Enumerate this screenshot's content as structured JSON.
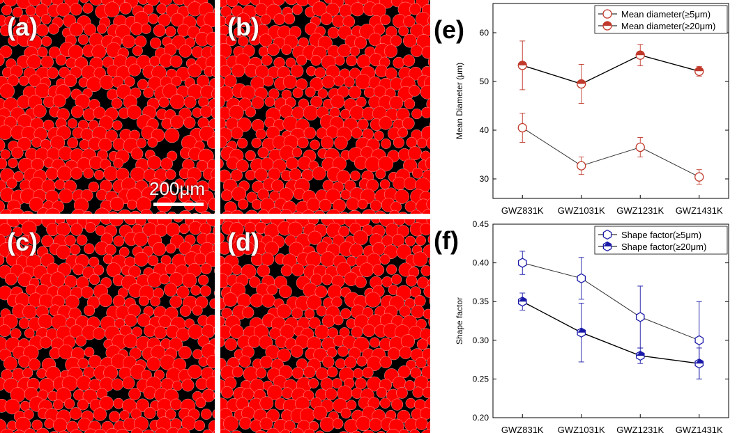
{
  "micrographs": [
    {
      "label": "(a)",
      "seed": 11
    },
    {
      "label": "(b)",
      "seed": 23
    },
    {
      "label": "(c)",
      "seed": 37
    },
    {
      "label": "(d)",
      "seed": 51
    }
  ],
  "scale_bar": {
    "text": "200μm"
  },
  "colors": {
    "grain": "#ff0000",
    "matrix": "#000000",
    "series_e": "#c0392b",
    "series_f": "#1a1aa8"
  },
  "panel_labels": {
    "e": "(e)",
    "f": "(f)"
  },
  "chart_data": [
    {
      "type": "line",
      "categories": [
        "GWZ831K",
        "GWZ1031K",
        "GWZ1231K",
        "GWZ1431K"
      ],
      "ylabel": "Mean Diameter (μm)",
      "xlabel": "",
      "ylim": [
        26,
        66
      ],
      "yticks": [
        30,
        40,
        50,
        60
      ],
      "legend_position": "top-right",
      "series": [
        {
          "name": "Mean diameter(≥5μm)",
          "marker": "circle-open",
          "values": [
            40.5,
            32.7,
            36.5,
            30.4
          ],
          "errors": [
            3.0,
            1.8,
            2.0,
            1.5
          ]
        },
        {
          "name": "Mean diameter(≥20μm)",
          "marker": "circle-half",
          "values": [
            53.3,
            49.5,
            55.4,
            52.1
          ],
          "errors": [
            5.0,
            4.0,
            2.2,
            1.0
          ]
        }
      ]
    },
    {
      "type": "line",
      "categories": [
        "GWZ831K",
        "GWZ1031K",
        "GWZ1231K",
        "GWZ1431K"
      ],
      "ylabel": "Shape factor",
      "xlabel": "",
      "ylim": [
        0.2,
        0.45
      ],
      "yticks": [
        0.2,
        0.25,
        0.3,
        0.35,
        0.4,
        0.45
      ],
      "legend_position": "top-right",
      "series": [
        {
          "name": "Shape factor(≥5μm)",
          "marker": "hexagon-open",
          "values": [
            0.4,
            0.38,
            0.33,
            0.3
          ],
          "errors": [
            0.015,
            0.027,
            0.04,
            0.05
          ]
        },
        {
          "name": "Shape factor(≥20μm)",
          "marker": "hexagon-half",
          "values": [
            0.35,
            0.31,
            0.28,
            0.27
          ],
          "errors": [
            0.011,
            0.038,
            0.01,
            0.02
          ]
        }
      ]
    }
  ]
}
